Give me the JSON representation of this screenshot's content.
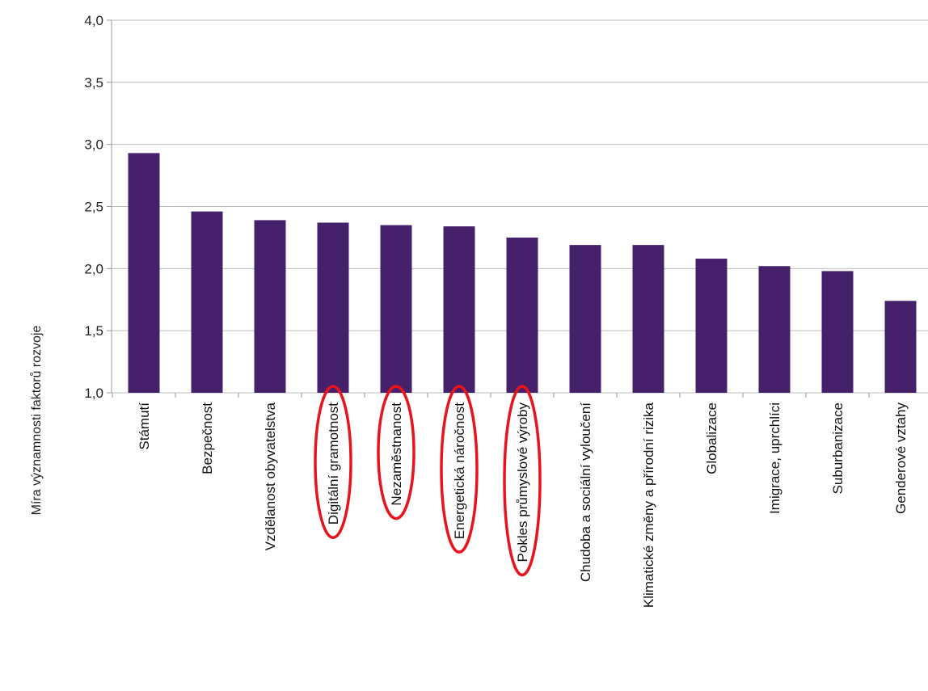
{
  "chart_data": {
    "type": "bar",
    "ylabel": "Míra významnosti faktorů rozvoje",
    "ylim": [
      1.0,
      4.0
    ],
    "yticks": [
      "1,0",
      "1,5",
      "2,0",
      "2,5",
      "3,0",
      "3,5",
      "4,0"
    ],
    "grid": true,
    "bar_color": "#45206b",
    "highlight_color": "#e8141b",
    "categories": [
      "Stámutí",
      "Bezpečnost",
      "Vzdělanost obyvatelstva",
      "Digitální gramotnost",
      "Nezaměstnanost",
      "Energetická náročnost",
      "Pokles průmyslové výroby",
      "Chudoba a sociální vyloučení",
      "Klimatické změny a přírodní rizika",
      "Globalizace",
      "Imigrace, uprchlíci",
      "Suburbanizace",
      "Genderové vztahy"
    ],
    "values": [
      2.93,
      2.46,
      2.39,
      2.37,
      2.35,
      2.34,
      2.25,
      2.19,
      2.19,
      2.08,
      2.02,
      1.98,
      1.74
    ],
    "highlighted": [
      "Digitální gramotnost",
      "Nezaměstnanost",
      "Energetická náročnost",
      "Pokles průmyslové výroby"
    ]
  }
}
